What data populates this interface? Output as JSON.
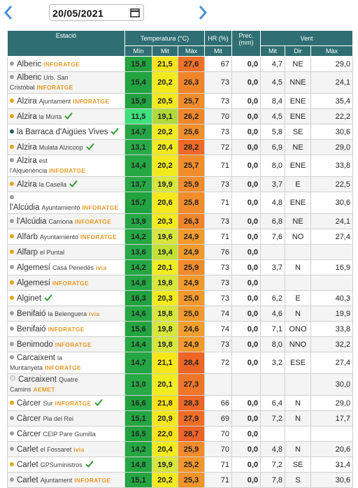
{
  "date": "20/05/2021",
  "table": {
    "headers": {
      "station": "Estació",
      "temp": "Temperatura (°C)",
      "hr": "HR (%)",
      "prec": "Prec. (mm)",
      "wind": "Vent"
    },
    "subheaders": [
      "Mín",
      "Mit",
      "Màx",
      "Mit",
      "Mit",
      "Dir",
      "Màx"
    ],
    "rows": [
      {
        "station": "Alberic",
        "network": "INFORATGE",
        "dot": "#9e9e9e",
        "check": false,
        "values": [
          "15,8",
          "21,5",
          "27,6",
          "67",
          "0,0",
          "4,7",
          "NE",
          "29,0"
        ]
      },
      {
        "station": "Alberic",
        "place": "Urb. San Cristóbal",
        "network": "INFORATGE",
        "dot": "#9e9e9e",
        "check": false,
        "values": [
          "15,4",
          "20,2",
          "26,3",
          "73",
          "0,0",
          "4,5",
          "NNE",
          "24,1"
        ]
      },
      {
        "station": "Alzira",
        "place": "Ajuntament",
        "network": "INFORATGE",
        "dot": "#e8a21c",
        "check": false,
        "values": [
          "15,9",
          "20,5",
          "25,7",
          "73",
          "0,0",
          "8,4",
          "ENE",
          "35,4"
        ]
      },
      {
        "station": "Alzira",
        "place": "la Murta",
        "dot": "#e8a21c",
        "check": true,
        "values": [
          "11,5",
          "19,1",
          "26,2",
          "70",
          "0,0",
          "4,5",
          "ENE",
          "22,2"
        ]
      },
      {
        "station": "la Barraca d'Aigües Vives",
        "dot": "#1f5f66",
        "check": true,
        "values": [
          "14,7",
          "20,2",
          "25,6",
          "73",
          "0,0",
          "5,8",
          "SE",
          "30,6"
        ]
      },
      {
        "station": "Alzira",
        "place": "Mulata Alzicoop",
        "dot": "#e8a21c",
        "check": true,
        "values": [
          "13,1",
          "20,4",
          "28,2",
          "72",
          "0,0",
          "6,9",
          "NE",
          "29,0"
        ]
      },
      {
        "station": "Alzira",
        "place": "est l'Alquenència",
        "network": "INFORATGE",
        "dot": "#9e9e9e",
        "check": false,
        "values": [
          "14,4",
          "20,2",
          "25,7",
          "71",
          "0,0",
          "8,0",
          "ENE",
          "33,8"
        ]
      },
      {
        "station": "Alzira",
        "place": "la Casella",
        "dot": "#e8a21c",
        "check": true,
        "values": [
          "13,7",
          "19,9",
          "25,9",
          "73",
          "0,0",
          "3,7",
          "E",
          "22,5"
        ]
      },
      {
        "station": "l'Alcúdia",
        "place": "Ayuntamiento",
        "network": "INFORATGE",
        "dot": "#9e9e9e",
        "check": false,
        "values": [
          "15,7",
          "20,6",
          "25,8",
          "71",
          "0,0",
          "4,8",
          "ENE",
          "30,6"
        ]
      },
      {
        "station": "l'Alcúdia",
        "place": "Carriona",
        "network": "INFORATGE",
        "dot": "#9e9e9e",
        "check": false,
        "values": [
          "13,9",
          "20,3",
          "26,3",
          "73",
          "0,0",
          "6,8",
          "NE",
          "24,1"
        ]
      },
      {
        "station": "Alfarb",
        "place": "Ayuntamiento",
        "network": "INFORATGE",
        "dot": "#e8a21c",
        "check": false,
        "values": [
          "14,2",
          "19,6",
          "24,9",
          "71",
          "0,0",
          "7,6",
          "NO",
          "27,4"
        ]
      },
      {
        "station": "Alfarp",
        "place": "el Puntal",
        "dot": "#e8a21c",
        "check": false,
        "values": [
          "13,6",
          "19,4",
          "24,9",
          "76",
          "0,0",
          null,
          null,
          null
        ]
      },
      {
        "station": "Algemesí",
        "place": "Casa Penedès",
        "network": "ivia",
        "dot": "#9e9e9e",
        "check": false,
        "values": [
          "14,2",
          "20,1",
          "25,9",
          "73",
          "0,0",
          "3,7",
          "N",
          "16,9"
        ]
      },
      {
        "station": "Algemesí",
        "network": "INFORATGE",
        "dot": "#e8a21c",
        "check": false,
        "values": [
          "14,8",
          "19,8",
          "24,9",
          "73",
          "0,0",
          null,
          null,
          null
        ]
      },
      {
        "station": "Alginet",
        "dot": "#e8a21c",
        "check": true,
        "values": [
          "16,3",
          "20,3",
          "25,0",
          "73",
          "0,0",
          "6,2",
          "E",
          "40,3"
        ]
      },
      {
        "station": "Benifaió",
        "place": "la Belenguera",
        "network": "ivia",
        "dot": "#9e9e9e",
        "check": false,
        "values": [
          "14,6",
          "19,8",
          "25,0",
          "74",
          "0,0",
          "4,6",
          "N",
          "19,9"
        ]
      },
      {
        "station": "Benifaió",
        "network": "INFORATGE",
        "dot": "#9e9e9e",
        "check": false,
        "values": [
          "15,6",
          "19,8",
          "24,6",
          "74",
          "0,0",
          "7,1",
          "ONO",
          "33,8"
        ]
      },
      {
        "station": "Benimodo",
        "network": "INFORATGE",
        "dot": "#9e9e9e",
        "check": false,
        "values": [
          "14,4",
          "19,8",
          "24,9",
          "73",
          "0,0",
          "8,0",
          "NNO",
          "32,2"
        ]
      },
      {
        "station": "Carcaixent",
        "place": "la Muntanyeta",
        "network": "INFORATGE",
        "dot": "#9e9e9e",
        "check": false,
        "values": [
          "14,7",
          "21,1",
          "28,4",
          "72",
          "0,0",
          "3,2",
          "ESE",
          "27,4"
        ]
      },
      {
        "station": "Carcaixent",
        "place": "Quatre Camins",
        "network": "AEMET",
        "dot": "#e6e6e6",
        "check": false,
        "values": [
          "13,0",
          "20,1",
          "27,3",
          null,
          null,
          null,
          null,
          "30,0"
        ]
      },
      {
        "station": "Càrcer",
        "place": "Sur",
        "network": "INFORATGE",
        "dot": "#e8a21c",
        "check": true,
        "values": [
          "16,6",
          "21,8",
          "28,3",
          "66",
          "0,0",
          "6,4",
          "N",
          "29,0"
        ]
      },
      {
        "station": "Càrcer",
        "place": "Pla del Rei",
        "dot": "#9e9e9e",
        "check": false,
        "values": [
          "15,1",
          "20,9",
          "27,9",
          "69",
          "0,0",
          "7,2",
          "N",
          "17,7"
        ]
      },
      {
        "station": "Càrcer",
        "place": "CEIP Pare Gumilla",
        "dot": "#9e9e9e",
        "check": false,
        "values": [
          "16,5",
          "22,0",
          "28,7",
          "70",
          "0,0",
          null,
          null,
          null
        ]
      },
      {
        "station": "Carlet",
        "place": "el Fossaret",
        "network": "ivia",
        "dot": "#9e9e9e",
        "check": false,
        "values": [
          "14,2",
          "20,4",
          "25,9",
          "70",
          "0,0",
          "4,8",
          "N",
          "20,6"
        ]
      },
      {
        "station": "Carlet",
        "place": "GPSuministros",
        "dot": "#e8a21c",
        "check": true,
        "values": [
          "14,8",
          "19,9",
          "25,2",
          "71",
          "0,0",
          "7,2",
          "SE",
          "31,4"
        ]
      },
      {
        "station": "Carlet",
        "place": "Ajuntament",
        "network": "INFORATGE",
        "dot": "#9e9e9e",
        "check": false,
        "values": [
          "15,1",
          "20,2",
          "25,3",
          "71",
          "0,0",
          "7,8",
          "S",
          "30,6"
        ]
      }
    ]
  }
}
